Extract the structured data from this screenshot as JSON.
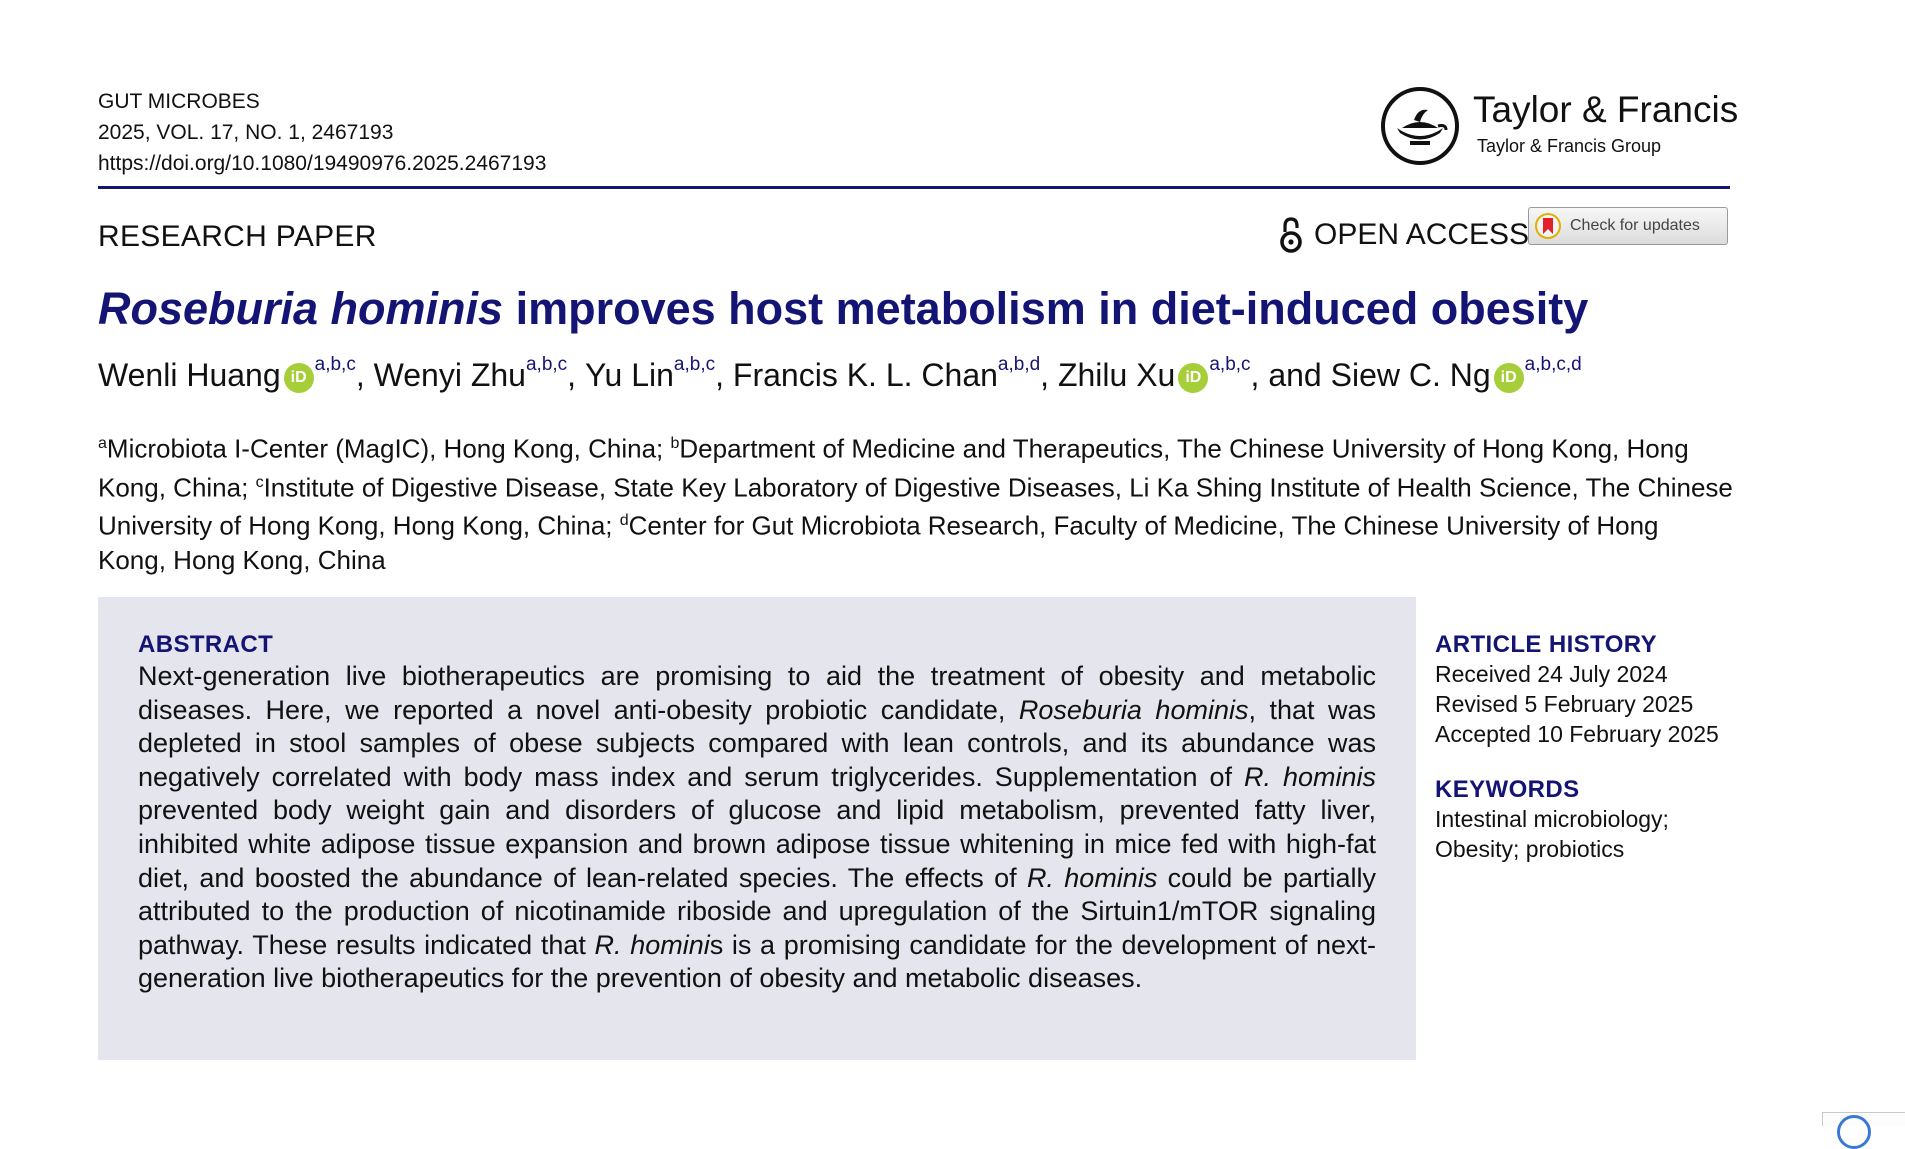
{
  "journal": {
    "name": "GUT MICROBES",
    "citation": "2025, VOL. 17, NO. 1, 2467193",
    "doi": "https://doi.org/10.1080/19490976.2025.2467193"
  },
  "publisher": {
    "name": "Taylor & Francis",
    "group": "Taylor & Francis Group"
  },
  "paper_type": "RESEARCH PAPER",
  "open_access_label": "OPEN ACCESS",
  "check_updates_label": "Check for updates",
  "title": {
    "italic_part": "Roseburia hominis",
    "rest": " improves host metabolism in diet-induced obesity"
  },
  "authors": [
    {
      "name": "Wenli Huang",
      "orcid": true,
      "affiliations": "a,b,c",
      "separator": ", "
    },
    {
      "name": "Wenyi Zhu",
      "orcid": false,
      "affiliations": "a,b,c",
      "separator": ", "
    },
    {
      "name": "Yu Lin",
      "orcid": false,
      "affiliations": "a,b,c",
      "separator": ", "
    },
    {
      "name": "Francis K. L. Chan",
      "orcid": false,
      "affiliations": "a,b,d",
      "separator": ", "
    },
    {
      "name": "Zhilu Xu",
      "orcid": true,
      "affiliations": "a,b,c",
      "separator": ", and "
    },
    {
      "name": "Siew C. Ng",
      "orcid": true,
      "affiliations": "a,b,c,d",
      "separator": ""
    }
  ],
  "orcid_glyph": "iD",
  "affiliations": [
    {
      "key": "a",
      "text": "Microbiota I-Center (MagIC), Hong Kong, China; "
    },
    {
      "key": "b",
      "text": "Department of Medicine and Therapeutics, The Chinese University of Hong Kong, Hong Kong, China; "
    },
    {
      "key": "c",
      "text": "Institute of Digestive Disease, State Key Laboratory of Digestive Diseases, Li Ka Shing Institute of Health Science, The Chinese University of Hong Kong, Hong Kong, China; "
    },
    {
      "key": "d",
      "text": "Center for Gut Microbiota Research, Faculty of Medicine, The Chinese University of Hong Kong, Hong Kong, China"
    }
  ],
  "abstract": {
    "heading": "ABSTRACT",
    "segments": [
      {
        "text": "Next-generation live biotherapeutics are promising to aid the treatment of obesity and metabolic diseases. Here, we reported a novel anti-obesity probiotic candidate, ",
        "italic": false
      },
      {
        "text": "Roseburia hominis",
        "italic": true
      },
      {
        "text": ", that was depleted in stool samples of obese subjects compared with lean controls, and its abundance was negatively correlated with body mass index and serum triglycerides. Supplementation of ",
        "italic": false
      },
      {
        "text": "R. hominis",
        "italic": true
      },
      {
        "text": " prevented body weight gain and disorders of glucose and lipid metabolism, prevented fatty liver, inhibited white adipose tissue expansion and brown adipose tissue whitening in mice fed with high-fat diet, and boosted the abundance of lean-related species. The effects of ",
        "italic": false
      },
      {
        "text": "R. hominis",
        "italic": true
      },
      {
        "text": " could be partially attributed to the production of nicotinamide riboside and upregulation of the Sirtuin1/mTOR signaling pathway. These results indicated that ",
        "italic": false
      },
      {
        "text": "R. homini",
        "italic": true
      },
      {
        "text": "s is a promising candidate for the development of next-generation live biotherapeutics for the prevention of obesity and metabolic diseases.",
        "italic": false
      }
    ]
  },
  "article_history": {
    "heading": "ARTICLE HISTORY",
    "received": "Received 24 July 2024",
    "revised": "Revised 5 February 2025",
    "accepted": "Accepted 10 February 2025"
  },
  "keywords": {
    "heading": "KEYWORDS",
    "line1": "Intestinal microbiology;",
    "line2": "Obesity; probiotics"
  },
  "colors": {
    "title_blue": "#141474",
    "abstract_bg": "#e5e5ee",
    "orcid_green": "#a6ce39"
  }
}
